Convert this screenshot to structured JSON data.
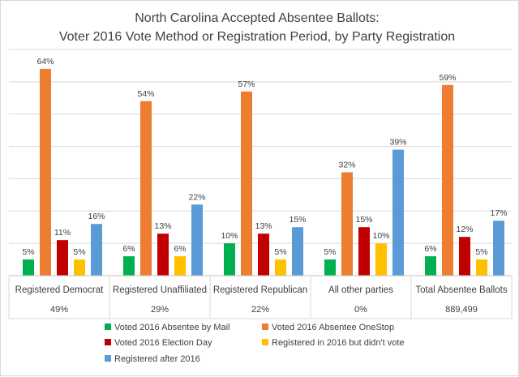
{
  "chart_data": {
    "type": "bar",
    "title": [
      "North Carolina Accepted Absentee Ballots:",
      "Voter 2016 Vote Method or Registration Period, by Party Registration"
    ],
    "categories": [
      "Registered Democrat",
      "Registered Unaffiliated",
      "Registered Republican",
      "All other parties",
      "Total Absentee Ballots"
    ],
    "category_sublabels": [
      "49%",
      "29%",
      "22%",
      "0%",
      "889,499"
    ],
    "ylim": [
      0,
      70
    ],
    "grid": true,
    "legend": "bottom",
    "series": [
      {
        "name": "Voted 2016 Absentee by Mail",
        "color": "#00b050",
        "values": [
          5,
          6,
          10,
          5,
          6
        ],
        "labels": [
          "5%",
          "6%",
          "10%",
          "5%",
          "6%"
        ]
      },
      {
        "name": "Voted 2016 Absentee OneStop",
        "color": "#ed7d31",
        "values": [
          64,
          54,
          57,
          32,
          59
        ],
        "labels": [
          "64%",
          "54%",
          "57%",
          "32%",
          "59%"
        ]
      },
      {
        "name": "Voted 2016 Election Day",
        "color": "#c00000",
        "values": [
          11,
          13,
          13,
          15,
          12
        ],
        "labels": [
          "11%",
          "13%",
          "13%",
          "15%",
          "12%"
        ]
      },
      {
        "name": "Registered in 2016 but didn't vote",
        "color": "#ffc000",
        "values": [
          5,
          6,
          5,
          10,
          5
        ],
        "labels": [
          "5%",
          "6%",
          "5%",
          "10%",
          "5%"
        ]
      },
      {
        "name": "Registered after 2016",
        "color": "#5b9bd5",
        "values": [
          16,
          22,
          15,
          39,
          17
        ],
        "labels": [
          "16%",
          "22%",
          "15%",
          "39%",
          "17%"
        ]
      }
    ]
  }
}
